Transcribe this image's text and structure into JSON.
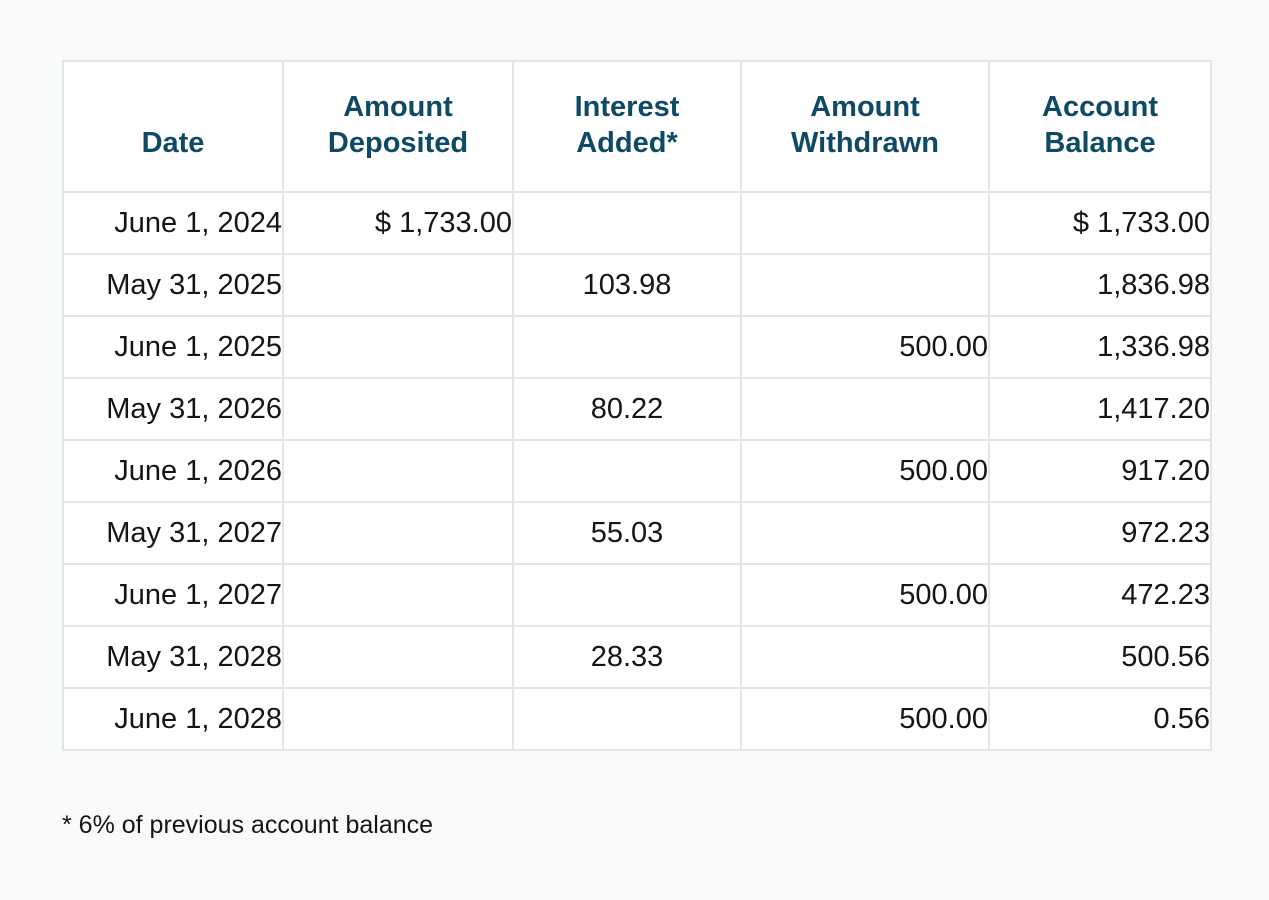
{
  "table": {
    "headers": {
      "date": "Date",
      "deposited": [
        "Amount",
        "Deposited"
      ],
      "interest": [
        "Interest",
        "Added*"
      ],
      "withdrawn": [
        "Amount",
        "Withdrawn"
      ],
      "balance": [
        "Account",
        "Balance"
      ]
    },
    "rows": [
      {
        "date": "June 1, 2024",
        "deposited": "$ 1,733.00",
        "interest": "",
        "withdrawn": "",
        "balance": "$ 1,733.00"
      },
      {
        "date": "May 31, 2025",
        "deposited": "",
        "interest": "103.98",
        "withdrawn": "",
        "balance": "1,836.98"
      },
      {
        "date": "June 1, 2025",
        "deposited": "",
        "interest": "",
        "withdrawn": "500.00",
        "balance": "1,336.98"
      },
      {
        "date": "May 31, 2026",
        "deposited": "",
        "interest": "80.22",
        "withdrawn": "",
        "balance": "1,417.20"
      },
      {
        "date": "June 1, 2026",
        "deposited": "",
        "interest": "",
        "withdrawn": "500.00",
        "balance": "917.20"
      },
      {
        "date": "May 31, 2027",
        "deposited": "",
        "interest": "55.03",
        "withdrawn": "",
        "balance": "972.23"
      },
      {
        "date": "June 1, 2027",
        "deposited": "",
        "interest": "",
        "withdrawn": "500.00",
        "balance": "472.23"
      },
      {
        "date": "May 31, 2028",
        "deposited": "",
        "interest": "28.33",
        "withdrawn": "",
        "balance": "500.56"
      },
      {
        "date": "June 1, 2028",
        "deposited": "",
        "interest": "",
        "withdrawn": "500.00",
        "balance": "0.56"
      }
    ]
  },
  "footnote": "* 6% of previous account balance",
  "colors": {
    "header_text": "#0e4a63",
    "border": "#e1e5e8",
    "background": "#f9fafa"
  }
}
